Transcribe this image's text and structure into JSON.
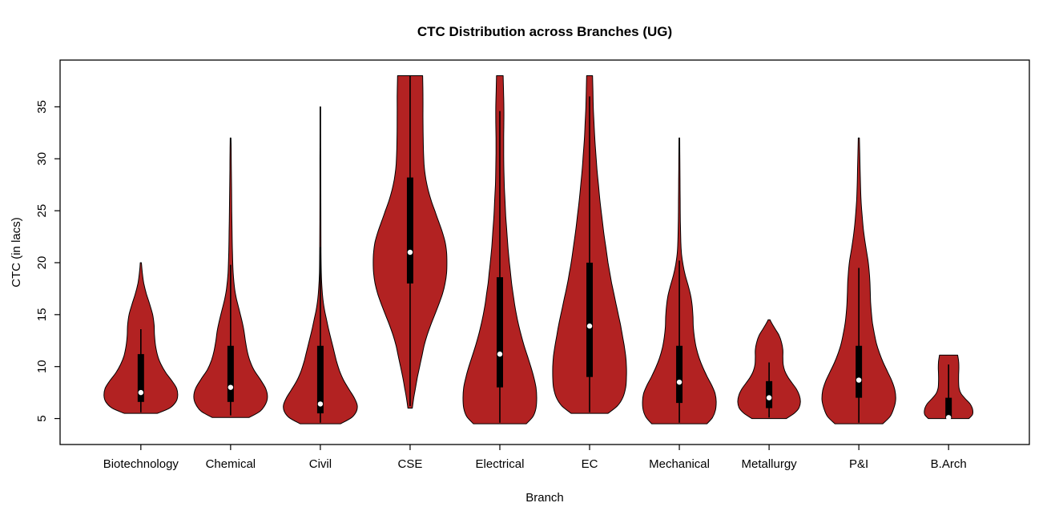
{
  "figure": {
    "background": "#ffffff"
  },
  "chart_data": {
    "type": "violin",
    "title": "CTC Distribution across Branches (UG)",
    "xlabel": "Branch",
    "ylabel": "CTC (in lacs)",
    "ylim": [
      2.5,
      39.5
    ],
    "yticks": [
      5,
      10,
      15,
      20,
      25,
      30,
      35
    ],
    "fill_color": "#b22222",
    "outline_color": "#000000",
    "box_color": "#000000",
    "median_dot_color": "#ffffff",
    "categories": [
      "Biotechnology",
      "Chemical",
      "Civil",
      "CSE",
      "Electrical",
      "EC",
      "Mechanical",
      "Metallurgy",
      "P&I",
      "B.Arch"
    ],
    "violins": [
      {
        "branch": "Biotechnology",
        "min": 5.5,
        "max": 20,
        "median": 7.5,
        "q1": 6.6,
        "q3": 11.2,
        "whisker_low": 5.6,
        "whisker_high": 13.6,
        "width_scale": 1.0,
        "profile": [
          [
            5.5,
            0.45
          ],
          [
            6.0,
            0.78
          ],
          [
            6.6,
            0.95
          ],
          [
            7.2,
            1.0
          ],
          [
            7.9,
            0.97
          ],
          [
            8.6,
            0.85
          ],
          [
            9.4,
            0.68
          ],
          [
            10.2,
            0.55
          ],
          [
            11.0,
            0.46
          ],
          [
            12.0,
            0.4
          ],
          [
            13.0,
            0.37
          ],
          [
            14.0,
            0.36
          ],
          [
            15.0,
            0.32
          ],
          [
            16.0,
            0.24
          ],
          [
            17.0,
            0.15
          ],
          [
            18.0,
            0.08
          ],
          [
            19.0,
            0.04
          ],
          [
            20.0,
            0.015
          ]
        ]
      },
      {
        "branch": "Chemical",
        "min": 5.1,
        "max": 32,
        "median": 8.0,
        "q1": 6.6,
        "q3": 12.0,
        "whisker_low": 5.3,
        "whisker_high": 19.8,
        "width_scale": 1.0,
        "profile": [
          [
            5.1,
            0.5
          ],
          [
            5.7,
            0.8
          ],
          [
            6.4,
            0.95
          ],
          [
            7.1,
            1.0
          ],
          [
            7.9,
            0.95
          ],
          [
            8.8,
            0.8
          ],
          [
            9.7,
            0.63
          ],
          [
            10.6,
            0.52
          ],
          [
            11.5,
            0.45
          ],
          [
            12.5,
            0.4
          ],
          [
            13.5,
            0.36
          ],
          [
            14.5,
            0.3
          ],
          [
            15.5,
            0.23
          ],
          [
            16.5,
            0.16
          ],
          [
            17.5,
            0.11
          ],
          [
            19.0,
            0.07
          ],
          [
            21.0,
            0.05
          ],
          [
            23.0,
            0.04
          ],
          [
            25.0,
            0.032
          ],
          [
            27.0,
            0.026
          ],
          [
            29.0,
            0.02
          ],
          [
            31.0,
            0.015
          ],
          [
            32.0,
            0.01
          ]
        ]
      },
      {
        "branch": "Civil",
        "min": 4.5,
        "max": 35,
        "median": 6.4,
        "q1": 5.5,
        "q3": 12.0,
        "whisker_low": 4.6,
        "whisker_high": 21.5,
        "width_scale": 1.0,
        "profile": [
          [
            4.5,
            0.55
          ],
          [
            5.1,
            0.85
          ],
          [
            5.7,
            0.98
          ],
          [
            6.3,
            1.0
          ],
          [
            7.0,
            0.92
          ],
          [
            7.8,
            0.78
          ],
          [
            8.7,
            0.63
          ],
          [
            9.6,
            0.52
          ],
          [
            10.5,
            0.44
          ],
          [
            11.5,
            0.37
          ],
          [
            12.5,
            0.3
          ],
          [
            13.5,
            0.23
          ],
          [
            14.5,
            0.17
          ],
          [
            15.5,
            0.11
          ],
          [
            16.5,
            0.07
          ],
          [
            17.5,
            0.045
          ],
          [
            19.0,
            0.025
          ],
          [
            21.0,
            0.018
          ],
          [
            24.0,
            0.014
          ],
          [
            27.0,
            0.012
          ],
          [
            30.0,
            0.01
          ],
          [
            33.0,
            0.009
          ],
          [
            35.0,
            0.008
          ]
        ]
      },
      {
        "branch": "CSE",
        "min": 6.0,
        "max": 38,
        "median": 21.0,
        "q1": 18.0,
        "q3": 28.2,
        "whisker_low": 6.2,
        "whisker_high": 38.0,
        "width_scale": 1.0,
        "profile": [
          [
            6.0,
            0.06
          ],
          [
            7.0,
            0.1
          ],
          [
            8.0,
            0.15
          ],
          [
            9.0,
            0.2
          ],
          [
            10.0,
            0.26
          ],
          [
            11.0,
            0.32
          ],
          [
            12.0,
            0.38
          ],
          [
            13.0,
            0.46
          ],
          [
            14.0,
            0.56
          ],
          [
            15.0,
            0.67
          ],
          [
            16.0,
            0.78
          ],
          [
            17.0,
            0.88
          ],
          [
            18.0,
            0.95
          ],
          [
            19.0,
            0.99
          ],
          [
            20.0,
            1.0
          ],
          [
            21.0,
            0.99
          ],
          [
            22.0,
            0.95
          ],
          [
            23.0,
            0.87
          ],
          [
            24.0,
            0.77
          ],
          [
            25.0,
            0.67
          ],
          [
            26.0,
            0.57
          ],
          [
            27.0,
            0.49
          ],
          [
            28.0,
            0.43
          ],
          [
            29.0,
            0.39
          ],
          [
            30.0,
            0.37
          ],
          [
            32.0,
            0.355
          ],
          [
            34.0,
            0.35
          ],
          [
            36.0,
            0.35
          ],
          [
            38.0,
            0.34
          ]
        ]
      },
      {
        "branch": "Electrical",
        "min": 4.5,
        "max": 38,
        "median": 11.2,
        "q1": 8.0,
        "q3": 18.6,
        "whisker_low": 4.6,
        "whisker_high": 34.6,
        "width_scale": 1.0,
        "profile": [
          [
            4.5,
            0.72
          ],
          [
            5.2,
            0.9
          ],
          [
            6.0,
            0.98
          ],
          [
            7.0,
            1.0
          ],
          [
            8.0,
            0.98
          ],
          [
            9.0,
            0.92
          ],
          [
            10.0,
            0.84
          ],
          [
            11.0,
            0.75
          ],
          [
            12.0,
            0.66
          ],
          [
            13.0,
            0.58
          ],
          [
            14.0,
            0.51
          ],
          [
            15.0,
            0.45
          ],
          [
            16.0,
            0.4
          ],
          [
            17.0,
            0.36
          ],
          [
            18.0,
            0.32
          ],
          [
            19.0,
            0.29
          ],
          [
            20.0,
            0.26
          ],
          [
            21.5,
            0.22
          ],
          [
            23.0,
            0.19
          ],
          [
            24.5,
            0.16
          ],
          [
            26.0,
            0.14
          ],
          [
            27.5,
            0.12
          ],
          [
            29.0,
            0.11
          ],
          [
            30.5,
            0.105
          ],
          [
            32.0,
            0.105
          ],
          [
            33.5,
            0.11
          ],
          [
            35.0,
            0.11
          ],
          [
            36.5,
            0.1
          ],
          [
            38.0,
            0.09
          ]
        ]
      },
      {
        "branch": "EC",
        "min": 5.5,
        "max": 38,
        "median": 13.9,
        "q1": 9.0,
        "q3": 20.0,
        "whisker_low": 5.6,
        "whisker_high": 36.0,
        "width_scale": 1.0,
        "profile": [
          [
            5.5,
            0.5
          ],
          [
            6.2,
            0.75
          ],
          [
            7.0,
            0.9
          ],
          [
            8.0,
            0.98
          ],
          [
            9.0,
            1.0
          ],
          [
            10.0,
            1.0
          ],
          [
            11.0,
            0.98
          ],
          [
            12.0,
            0.94
          ],
          [
            13.0,
            0.89
          ],
          [
            14.0,
            0.84
          ],
          [
            15.0,
            0.78
          ],
          [
            16.0,
            0.72
          ],
          [
            17.0,
            0.66
          ],
          [
            18.0,
            0.6
          ],
          [
            19.0,
            0.55
          ],
          [
            20.0,
            0.5
          ],
          [
            21.5,
            0.44
          ],
          [
            23.0,
            0.38
          ],
          [
            24.5,
            0.33
          ],
          [
            26.0,
            0.28
          ],
          [
            27.5,
            0.24
          ],
          [
            29.0,
            0.2
          ],
          [
            30.5,
            0.17
          ],
          [
            32.0,
            0.14
          ],
          [
            33.5,
            0.12
          ],
          [
            35.0,
            0.1
          ],
          [
            36.5,
            0.09
          ],
          [
            38.0,
            0.08
          ]
        ]
      },
      {
        "branch": "Mechanical",
        "min": 4.5,
        "max": 32,
        "median": 8.5,
        "q1": 6.5,
        "q3": 12.0,
        "whisker_low": 4.6,
        "whisker_high": 20.2,
        "width_scale": 1.0,
        "profile": [
          [
            4.5,
            0.75
          ],
          [
            5.1,
            0.9
          ],
          [
            5.8,
            0.98
          ],
          [
            6.6,
            1.0
          ],
          [
            7.4,
            0.97
          ],
          [
            8.2,
            0.88
          ],
          [
            9.0,
            0.76
          ],
          [
            9.9,
            0.64
          ],
          [
            10.8,
            0.54
          ],
          [
            11.8,
            0.46
          ],
          [
            12.8,
            0.41
          ],
          [
            13.8,
            0.38
          ],
          [
            14.8,
            0.37
          ],
          [
            15.8,
            0.35
          ],
          [
            16.8,
            0.31
          ],
          [
            17.8,
            0.24
          ],
          [
            18.8,
            0.16
          ],
          [
            19.8,
            0.1
          ],
          [
            20.8,
            0.06
          ],
          [
            22.0,
            0.04
          ],
          [
            24.0,
            0.028
          ],
          [
            26.0,
            0.022
          ],
          [
            28.0,
            0.018
          ],
          [
            30.0,
            0.014
          ],
          [
            32.0,
            0.01
          ]
        ]
      },
      {
        "branch": "Metallurgy",
        "min": 5.0,
        "max": 14.5,
        "median": 7.0,
        "q1": 6.0,
        "q3": 8.6,
        "whisker_low": 5.1,
        "whisker_high": 10.4,
        "width_scale": 0.85,
        "profile": [
          [
            5.0,
            0.55
          ],
          [
            5.5,
            0.8
          ],
          [
            6.0,
            0.95
          ],
          [
            6.6,
            1.0
          ],
          [
            7.2,
            0.97
          ],
          [
            7.8,
            0.88
          ],
          [
            8.4,
            0.74
          ],
          [
            9.0,
            0.6
          ],
          [
            9.6,
            0.5
          ],
          [
            10.2,
            0.45
          ],
          [
            10.9,
            0.44
          ],
          [
            11.6,
            0.44
          ],
          [
            12.3,
            0.4
          ],
          [
            13.0,
            0.32
          ],
          [
            13.6,
            0.2
          ],
          [
            14.1,
            0.1
          ],
          [
            14.5,
            0.03
          ]
        ]
      },
      {
        "branch": "P&I",
        "min": 4.5,
        "max": 32,
        "median": 8.7,
        "q1": 7.0,
        "q3": 12.0,
        "whisker_low": 4.6,
        "whisker_high": 19.5,
        "width_scale": 1.0,
        "profile": [
          [
            4.5,
            0.65
          ],
          [
            5.2,
            0.85
          ],
          [
            6.0,
            0.95
          ],
          [
            6.8,
            1.0
          ],
          [
            7.7,
            0.98
          ],
          [
            8.6,
            0.9
          ],
          [
            9.5,
            0.78
          ],
          [
            10.4,
            0.66
          ],
          [
            11.3,
            0.56
          ],
          [
            12.2,
            0.48
          ],
          [
            13.2,
            0.42
          ],
          [
            14.2,
            0.37
          ],
          [
            15.2,
            0.34
          ],
          [
            16.2,
            0.32
          ],
          [
            17.2,
            0.31
          ],
          [
            18.2,
            0.3
          ],
          [
            19.2,
            0.28
          ],
          [
            20.2,
            0.25
          ],
          [
            21.5,
            0.19
          ],
          [
            23.0,
            0.13
          ],
          [
            24.5,
            0.09
          ],
          [
            26.0,
            0.06
          ],
          [
            27.5,
            0.045
          ],
          [
            29.0,
            0.035
          ],
          [
            30.5,
            0.025
          ],
          [
            32.0,
            0.015
          ]
        ]
      },
      {
        "branch": "B.Arch",
        "min": 5.0,
        "max": 11.1,
        "median": 5.1,
        "q1": 5.0,
        "q3": 7.0,
        "whisker_low": 5.0,
        "whisker_high": 10.2,
        "width_scale": 0.65,
        "profile": [
          [
            5.0,
            0.85
          ],
          [
            5.4,
            1.0
          ],
          [
            5.9,
            1.0
          ],
          [
            6.4,
            0.9
          ],
          [
            6.9,
            0.7
          ],
          [
            7.4,
            0.52
          ],
          [
            7.9,
            0.44
          ],
          [
            8.5,
            0.42
          ],
          [
            9.2,
            0.42
          ],
          [
            9.9,
            0.43
          ],
          [
            10.5,
            0.42
          ],
          [
            11.1,
            0.38
          ]
        ]
      }
    ]
  }
}
